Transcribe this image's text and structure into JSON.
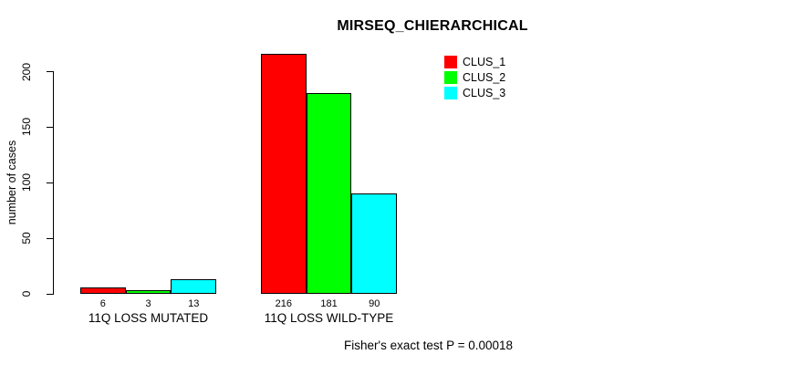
{
  "chart_data": {
    "type": "bar",
    "title": "MIRSEQ_CHIERARCHICAL",
    "ylabel": "number of cases",
    "xlabel": "",
    "categories": [
      "11Q LOSS MUTATED",
      "11Q LOSS WILD-TYPE"
    ],
    "series": [
      {
        "name": "CLUS_1",
        "color": "#ff0000",
        "values": [
          6,
          216
        ]
      },
      {
        "name": "CLUS_2",
        "color": "#00ff00",
        "values": [
          3,
          181
        ]
      },
      {
        "name": "CLUS_3",
        "color": "#00ffff",
        "values": [
          13,
          90
        ]
      }
    ],
    "yticks": [
      0,
      50,
      100,
      150,
      200
    ],
    "ylim": [
      0,
      220
    ],
    "grid": false,
    "legend_position": "top-right",
    "annotation": "Fisher's exact test P = 0.00018",
    "bar_border_color": "#000000",
    "background": "#ffffff"
  }
}
